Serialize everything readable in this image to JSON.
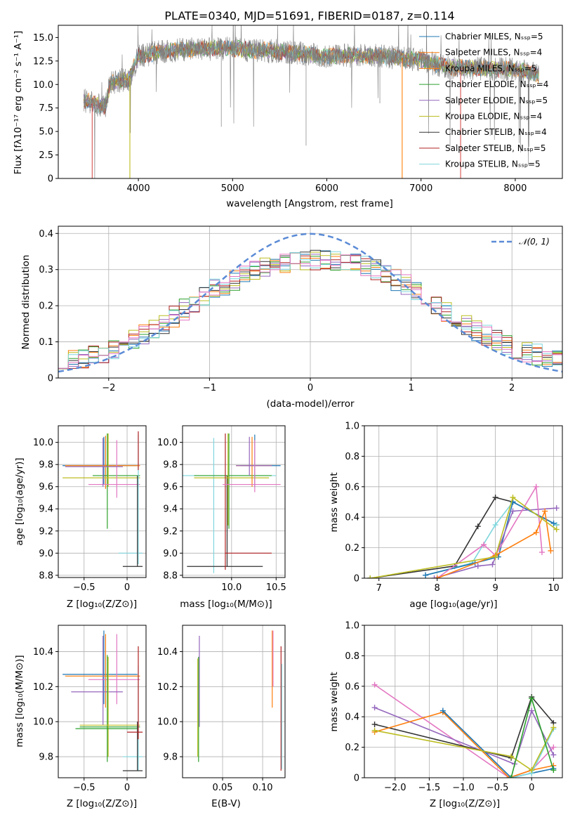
{
  "chart_data": [
    {
      "id": "spectrum",
      "type": "line",
      "title": "PLATE=0340, MJD=51691, FIBERID=0187, z=0.114",
      "xlabel": "wavelength [Angstrom, rest frame]",
      "ylabel": "Flux [fλ10⁻¹⁷ erg cm⁻² s⁻¹ A⁻¹]",
      "xlim": [
        3150,
        8500
      ],
      "ylim": [
        0,
        16.3
      ],
      "xticks": [
        4000,
        5000,
        6000,
        7000,
        8000
      ],
      "yticks": [
        0.0,
        2.5,
        5.0,
        7.5,
        10.0,
        12.5,
        15.0
      ],
      "legend_position": "right",
      "legend": [
        {
          "label": "Chabrier MILES, Nₛₛₚ=5",
          "color": "#1f77b4"
        },
        {
          "label": "Salpeter MILES, Nₛₛₚ=4",
          "color": "#ff7f0e"
        },
        {
          "label": "Kroupa MILES, Nₛₛₚ=5",
          "color": "#ff7f0e"
        },
        {
          "label": "Chabrier ELODIE, Nₛₛₚ=4",
          "color": "#2ca02c"
        },
        {
          "label": "Salpeter ELODIE, Nₛₛₚ=5",
          "color": "#9467bd"
        },
        {
          "label": "Kroupa ELODIE, Nₛₛₚ=4",
          "color": "#bcbd22"
        },
        {
          "label": "Chabrier STELIB, Nₛₛₚ=4",
          "color": "#333333"
        },
        {
          "label": "Salpeter STELIB, Nₛₛₚ=5",
          "color": "#b22222"
        },
        {
          "label": "Kroupa STELIB, Nₛₛₚ=5",
          "color": "#7fd6dd"
        }
      ],
      "continuum_anchors": {
        "x": [
          3420,
          3650,
          3700,
          3900,
          4000,
          4300,
          4700,
          5000,
          5500,
          6000,
          6500,
          7000,
          7300,
          8000,
          8250
        ],
        "y": [
          8.3,
          7.6,
          10.2,
          10.6,
          13.0,
          13.6,
          13.8,
          13.8,
          13.5,
          13.0,
          13.1,
          12.6,
          11.8,
          11.6,
          11.0
        ]
      },
      "model_cutoffs": [
        {
          "x": 3510,
          "color": "#d9534f"
        },
        {
          "x": 3910,
          "color": "#bcbd22"
        },
        {
          "x": 6800,
          "color": "#ff7f0e"
        },
        {
          "x": 7420,
          "color": "#d9534f"
        }
      ],
      "grid": false
    },
    {
      "id": "residuals",
      "type": "histogram",
      "xlabel": "(data-model)/error",
      "ylabel": "Normed distribution",
      "xlim": [
        -2.5,
        2.5
      ],
      "ylim": [
        0,
        0.42
      ],
      "xticks": [
        -2,
        -1,
        0,
        1,
        2
      ],
      "yticks": [
        0.0,
        0.1,
        0.2,
        0.3,
        0.4
      ],
      "reference": {
        "label": "𝒩(0, 1)",
        "color": "#5b8bd6",
        "mean": 0,
        "sigma": 1
      },
      "bin_width": 0.1,
      "envelope": {
        "x": [
          -2.5,
          -2.0,
          -1.5,
          -1.0,
          -0.5,
          0.0,
          0.5,
          1.0,
          1.5,
          2.0,
          2.5
        ],
        "y": [
          0.035,
          0.075,
          0.14,
          0.24,
          0.3,
          0.33,
          0.32,
          0.25,
          0.15,
          0.085,
          0.045
        ]
      },
      "grid": true
    },
    {
      "id": "age-vs-Z",
      "type": "errorbar",
      "xlabel": "Z [log₁₀(Z/Z⊙)]",
      "ylabel": "age  [log₁₀(age/yr)]",
      "xlim": [
        -0.8,
        0.22
      ],
      "ylim": [
        8.78,
        10.15
      ],
      "xticks": [
        -0.5,
        0.0
      ],
      "yticks": [
        8.8,
        9.0,
        9.2,
        9.4,
        9.6,
        9.8,
        10.0
      ],
      "grid": true,
      "points": [
        {
          "x": -0.27,
          "x_lo": -0.75,
          "x_hi": 0.12,
          "y": 9.79,
          "y_lo": 9.62,
          "y_hi": 10.05,
          "color": "#1f77b4"
        },
        {
          "x": -0.25,
          "x_lo": -0.72,
          "x_hi": 0.15,
          "y": 9.79,
          "y_lo": 9.58,
          "y_hi": 10.06,
          "color": "#ff7f0e"
        },
        {
          "x": -0.23,
          "x_lo": -0.4,
          "x_hi": 0.15,
          "y": 9.7,
          "y_lo": 9.22,
          "y_hi": 10.08,
          "color": "#2ca02c"
        },
        {
          "x": -0.22,
          "x_lo": -0.75,
          "x_hi": 0.15,
          "y": 9.68,
          "y_lo": 9.6,
          "y_hi": 10.08,
          "color": "#bcbd22"
        },
        {
          "x": -0.12,
          "x_lo": -0.45,
          "x_hi": 0.15,
          "y": 9.62,
          "y_lo": 9.5,
          "y_hi": 10.02,
          "color": "#e377c2"
        },
        {
          "x": -0.28,
          "x_lo": -0.72,
          "x_hi": -0.05,
          "y": 9.78,
          "y_lo": 9.6,
          "y_hi": 10.04,
          "color": "#9467bd"
        },
        {
          "x": 0.13,
          "x_lo": -0.1,
          "x_hi": 0.18,
          "y": 9.0,
          "y_lo": 8.9,
          "y_hi": 10.07,
          "color": "#7fd6dd"
        },
        {
          "x": 0.12,
          "x_lo": -0.05,
          "x_hi": 0.18,
          "y": 8.88,
          "y_lo": 8.88,
          "y_hi": 9.7,
          "color": "#333333"
        },
        {
          "x": 0.13,
          "x_lo": 0.13,
          "x_hi": 0.13,
          "y": 9.9,
          "y_lo": 9.75,
          "y_hi": 10.1,
          "color": "#b22222"
        }
      ]
    },
    {
      "id": "age-vs-mass",
      "type": "errorbar",
      "xlabel": "mass [log₁₀(M/M⊙)]",
      "ylabel": "",
      "xlim": [
        9.45,
        10.6
      ],
      "ylim": [
        8.78,
        10.15
      ],
      "xticks": [
        10.0,
        10.5
      ],
      "yticks": [
        8.8,
        9.0,
        9.2,
        9.4,
        9.6,
        9.8,
        10.0
      ],
      "grid": true,
      "points": [
        {
          "x": 9.8,
          "x_lo": 9.45,
          "x_hi": 10.5,
          "y": 9.7,
          "y_lo": 8.82,
          "y_hi": 10.04,
          "color": "#7fd6dd"
        },
        {
          "x": 9.95,
          "x_lo": 9.5,
          "x_hi": 10.35,
          "y": 8.88,
          "y_lo": 8.88,
          "y_hi": 9.7,
          "color": "#333333"
        },
        {
          "x": 9.97,
          "x_lo": 9.58,
          "x_hi": 10.45,
          "y": 9.7,
          "y_lo": 9.22,
          "y_hi": 10.08,
          "color": "#2ca02c"
        },
        {
          "x": 9.96,
          "x_lo": 9.58,
          "x_hi": 10.42,
          "y": 9.68,
          "y_lo": 9.25,
          "y_hi": 10.08,
          "color": "#bcbd22"
        },
        {
          "x": 9.93,
          "x_lo": 9.93,
          "x_hi": 10.45,
          "y": 9.0,
          "y_lo": 8.85,
          "y_hi": 10.08,
          "color": "#b22222"
        },
        {
          "x": 10.26,
          "x_lo": 10.1,
          "x_hi": 10.55,
          "y": 9.79,
          "y_lo": 9.6,
          "y_hi": 10.07,
          "color": "#1f77b4"
        },
        {
          "x": 10.23,
          "x_lo": 10.05,
          "x_hi": 10.45,
          "y": 9.79,
          "y_lo": 9.6,
          "y_hi": 10.05,
          "color": "#ff7f0e"
        },
        {
          "x": 10.2,
          "x_lo": 10.05,
          "x_hi": 10.45,
          "y": 9.79,
          "y_lo": 9.7,
          "y_hi": 10.05,
          "color": "#9467bd"
        },
        {
          "x": 10.26,
          "x_lo": 9.9,
          "x_hi": 10.55,
          "y": 9.62,
          "y_lo": 9.55,
          "y_hi": 10.02,
          "color": "#e377c2"
        }
      ]
    },
    {
      "id": "mass-weight-vs-age",
      "type": "line",
      "xlabel": "age  [log₁₀(age/yr)]",
      "ylabel": "mass weight",
      "xlim": [
        6.75,
        10.15
      ],
      "ylim": [
        0,
        1.0
      ],
      "xticks": [
        7,
        8,
        9,
        10
      ],
      "yticks": [
        0.0,
        0.2,
        0.4,
        0.6,
        0.8,
        1.0
      ],
      "grid": true,
      "series": [
        {
          "color": "#333333",
          "x": [
            6.85,
            8.3,
            8.7,
            9.0,
            9.3,
            10.05
          ],
          "y": [
            0.0,
            0.08,
            0.34,
            0.53,
            0.5,
            0.35
          ]
        },
        {
          "color": "#7fd6dd",
          "x": [
            7.8,
            8.6,
            9.0,
            9.3,
            10.05
          ],
          "y": [
            0.02,
            0.1,
            0.35,
            0.5,
            0.35
          ]
        },
        {
          "color": "#1f77b4",
          "x": [
            7.8,
            8.65,
            9.05,
            9.3,
            10.0
          ],
          "y": [
            0.02,
            0.1,
            0.14,
            0.5,
            0.36
          ]
        },
        {
          "color": "#9467bd",
          "x": [
            7.95,
            8.7,
            8.95,
            9.3,
            10.05
          ],
          "y": [
            0.0,
            0.08,
            0.09,
            0.44,
            0.46
          ]
        },
        {
          "color": "#e377c2",
          "x": [
            8.0,
            8.8,
            9.0,
            9.7,
            9.8
          ],
          "y": [
            0.0,
            0.22,
            0.15,
            0.6,
            0.17
          ]
        },
        {
          "color": "#ff7f0e",
          "x": [
            8.0,
            9.0,
            9.7,
            9.85,
            9.95
          ],
          "y": [
            0.0,
            0.15,
            0.3,
            0.44,
            0.18
          ]
        },
        {
          "color": "#bcbd22",
          "x": [
            6.85,
            9.0,
            9.3,
            10.05
          ],
          "y": [
            0.0,
            0.14,
            0.53,
            0.32
          ]
        }
      ]
    },
    {
      "id": "mass-vs-Z",
      "type": "errorbar",
      "xlabel": "Z [log₁₀(Z/Z⊙)]",
      "ylabel": "mass [log₁₀(M/M⊙)]",
      "xlim": [
        -0.8,
        0.22
      ],
      "ylim": [
        9.68,
        10.55
      ],
      "xticks": [
        -0.5,
        0.0
      ],
      "yticks": [
        9.8,
        10.0,
        10.2,
        10.4
      ],
      "grid": true,
      "points": [
        {
          "x": -0.27,
          "x_lo": -0.75,
          "x_hi": 0.12,
          "y": 10.27,
          "y_lo": 10.1,
          "y_hi": 10.52,
          "color": "#1f77b4"
        },
        {
          "x": -0.25,
          "x_lo": -0.72,
          "x_hi": 0.15,
          "y": 10.26,
          "y_lo": 10.08,
          "y_hi": 10.5,
          "color": "#ff7f0e"
        },
        {
          "x": -0.12,
          "x_lo": -0.45,
          "x_hi": 0.15,
          "y": 10.24,
          "y_lo": 10.1,
          "y_hi": 10.5,
          "color": "#e377c2"
        },
        {
          "x": -0.28,
          "x_lo": -0.65,
          "x_hi": -0.05,
          "y": 10.17,
          "y_lo": 9.98,
          "y_hi": 10.49,
          "color": "#9467bd"
        },
        {
          "x": -0.23,
          "x_lo": -0.55,
          "x_hi": 0.15,
          "y": 9.97,
          "y_lo": 9.77,
          "y_hi": 10.38,
          "color": "#2ca02c"
        },
        {
          "x": -0.22,
          "x_lo": -0.55,
          "x_hi": 0.15,
          "y": 9.98,
          "y_lo": 9.8,
          "y_hi": 10.37,
          "color": "#bcbd22"
        },
        {
          "x": -0.2,
          "x_lo": -0.6,
          "x_hi": 0.12,
          "y": 9.96,
          "y_lo": 9.96,
          "y_hi": 9.96,
          "color": "#2ca02c"
        },
        {
          "x": 0.13,
          "x_lo": -0.05,
          "x_hi": 0.18,
          "y": 9.8,
          "y_lo": 9.72,
          "y_hi": 10.32,
          "color": "#7fd6dd"
        },
        {
          "x": 0.12,
          "x_lo": -0.05,
          "x_hi": 0.18,
          "y": 9.72,
          "y_lo": 9.72,
          "y_hi": 10.0,
          "color": "#333333"
        },
        {
          "x": 0.13,
          "x_lo": 0.0,
          "x_hi": 0.18,
          "y": 9.94,
          "y_lo": 9.9,
          "y_hi": 10.43,
          "color": "#b22222"
        }
      ]
    },
    {
      "id": "mass-vs-EBV",
      "type": "errorbar",
      "xlabel": "E(B-V)",
      "ylabel": "",
      "xlim": [
        0.0,
        0.128
      ],
      "ylim": [
        9.68,
        10.55
      ],
      "xticks": [
        0.05,
        0.1
      ],
      "yticks": [
        9.8,
        10.0,
        10.2,
        10.4
      ],
      "grid": true,
      "points": [
        {
          "x": 0.021,
          "x_lo": 0.021,
          "x_hi": 0.021,
          "y": 10.2,
          "y_lo": 9.97,
          "y_hi": 10.49,
          "color": "#9467bd"
        },
        {
          "x": 0.02,
          "x_lo": 0.02,
          "x_hi": 0.02,
          "y": 10.0,
          "y_lo": 9.77,
          "y_hi": 10.37,
          "color": "#2ca02c"
        },
        {
          "x": 0.019,
          "x_lo": 0.019,
          "x_hi": 0.019,
          "y": 10.0,
          "y_lo": 9.8,
          "y_hi": 10.36,
          "color": "#bcbd22"
        },
        {
          "x": 0.112,
          "x_lo": 0.112,
          "x_hi": 0.112,
          "y": 10.3,
          "y_lo": 10.08,
          "y_hi": 10.52,
          "color": "#ff7f0e"
        },
        {
          "x": 0.113,
          "x_lo": 0.113,
          "x_hi": 0.113,
          "y": 10.35,
          "y_lo": 10.2,
          "y_hi": 10.52,
          "color": "#e377c2"
        },
        {
          "x": 0.123,
          "x_lo": 0.123,
          "x_hi": 0.123,
          "y": 10.0,
          "y_lo": 9.72,
          "y_hi": 10.43,
          "color": "#b22222"
        },
        {
          "x": 0.124,
          "x_lo": 0.124,
          "x_hi": 0.124,
          "y": 9.9,
          "y_lo": 9.73,
          "y_hi": 10.33,
          "color": "#7fd6dd"
        }
      ]
    },
    {
      "id": "mass-weight-vs-Z",
      "type": "line",
      "xlabel": "Z [log₁₀(Z/Z⊙)]",
      "ylabel": "mass weight",
      "xlim": [
        -2.45,
        0.45
      ],
      "ylim": [
        0,
        1.0
      ],
      "xticks": [
        -2.0,
        -1.5,
        -1.0,
        -0.5,
        0.0
      ],
      "yticks": [
        0.0,
        0.2,
        0.4,
        0.6,
        0.8,
        1.0
      ],
      "grid": true,
      "series": [
        {
          "color": "#e377c2",
          "x": [
            -2.3,
            -0.33,
            0.0,
            0.32
          ],
          "y": [
            0.61,
            0.0,
            0.05,
            0.2
          ]
        },
        {
          "color": "#9467bd",
          "x": [
            -2.3,
            -0.25,
            0.0,
            0.32
          ],
          "y": [
            0.46,
            0.09,
            0.44,
            0.15
          ]
        },
        {
          "color": "#333333",
          "x": [
            -2.3,
            -0.3,
            0.0,
            0.32
          ],
          "y": [
            0.35,
            0.13,
            0.53,
            0.36
          ]
        },
        {
          "color": "#ff7f0e",
          "x": [
            -2.3,
            -1.3,
            -0.33,
            0.0,
            0.32
          ],
          "y": [
            0.3,
            0.43,
            0.0,
            0.05,
            0.08
          ]
        },
        {
          "color": "#1f77b4",
          "x": [
            -1.3,
            -0.3,
            0.0,
            0.32
          ],
          "y": [
            0.44,
            0.0,
            0.03,
            0.06
          ]
        },
        {
          "color": "#7fd6dd",
          "x": [
            -0.3,
            0.0,
            0.32
          ],
          "y": [
            0.0,
            0.03,
            0.32
          ]
        },
        {
          "color": "#bcbd22",
          "x": [
            -2.3,
            -0.3,
            0.0,
            0.32
          ],
          "y": [
            0.31,
            0.14,
            0.05,
            0.33
          ]
        },
        {
          "color": "#2ca02c",
          "x": [
            -0.3,
            0.0,
            0.32
          ],
          "y": [
            0.0,
            0.52,
            0.05
          ]
        }
      ]
    }
  ]
}
